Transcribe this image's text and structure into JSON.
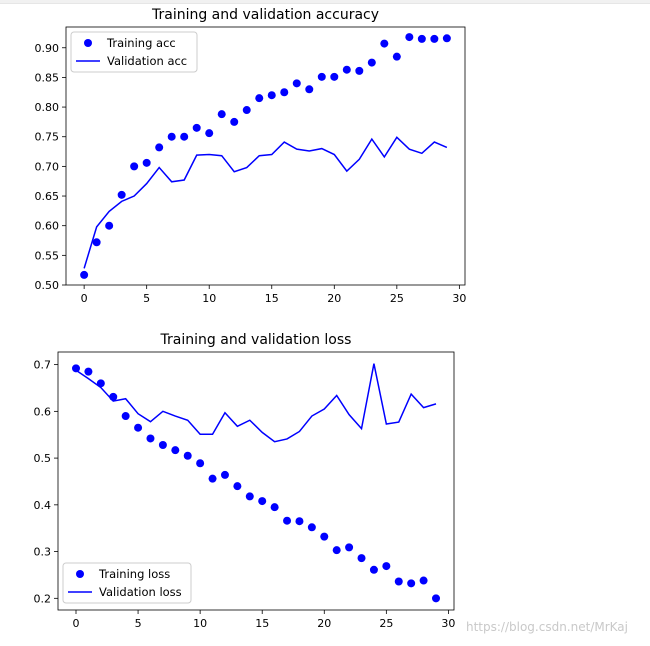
{
  "chart_data": [
    {
      "type": "line",
      "title": "Training and validation accuracy",
      "xlabel": "",
      "ylabel": "",
      "xlim": [
        -1.45,
        30.45
      ],
      "ylim": [
        0.5,
        0.935
      ],
      "xticks": [
        0,
        5,
        10,
        15,
        20,
        25,
        30
      ],
      "yticks": [
        0.5,
        0.55,
        0.6,
        0.65,
        0.7,
        0.75,
        0.8,
        0.85,
        0.9
      ],
      "ytick_labels": [
        "0.50",
        "0.55",
        "0.60",
        "0.65",
        "0.70",
        "0.75",
        "0.80",
        "0.85",
        "0.90"
      ],
      "grid": false,
      "legend": "top-left",
      "x": [
        0,
        1,
        2,
        3,
        4,
        5,
        6,
        7,
        8,
        9,
        10,
        11,
        12,
        13,
        14,
        15,
        16,
        17,
        18,
        19,
        20,
        21,
        22,
        23,
        24,
        25,
        26,
        27,
        28,
        29
      ],
      "series": [
        {
          "name": "Training acc",
          "style": "points",
          "color": "#0000ff",
          "values": [
            0.517,
            0.572,
            0.6,
            0.652,
            0.7,
            0.706,
            0.732,
            0.75,
            0.75,
            0.765,
            0.756,
            0.788,
            0.775,
            0.795,
            0.815,
            0.82,
            0.825,
            0.84,
            0.83,
            0.851,
            0.851,
            0.863,
            0.861,
            0.875,
            0.907,
            0.885,
            0.918,
            0.915,
            0.915,
            0.916
          ]
        },
        {
          "name": "Validation acc",
          "style": "line",
          "color": "#0000ff",
          "values": [
            0.528,
            0.598,
            0.624,
            0.641,
            0.65,
            0.671,
            0.698,
            0.674,
            0.677,
            0.719,
            0.72,
            0.718,
            0.691,
            0.698,
            0.718,
            0.72,
            0.741,
            0.729,
            0.726,
            0.73,
            0.72,
            0.692,
            0.712,
            0.746,
            0.716,
            0.749,
            0.729,
            0.722,
            0.741,
            0.732
          ]
        }
      ]
    },
    {
      "type": "line",
      "title": "Training and validation loss",
      "xlabel": "",
      "ylabel": "",
      "xlim": [
        -1.45,
        30.45
      ],
      "ylim": [
        0.175,
        0.727
      ],
      "xticks": [
        0,
        5,
        10,
        15,
        20,
        25,
        30
      ],
      "yticks": [
        0.2,
        0.3,
        0.4,
        0.5,
        0.6,
        0.7
      ],
      "ytick_labels": [
        "0.2",
        "0.3",
        "0.4",
        "0.5",
        "0.6",
        "0.7"
      ],
      "grid": false,
      "legend": "bottom-left",
      "x": [
        0,
        1,
        2,
        3,
        4,
        5,
        6,
        7,
        8,
        9,
        10,
        11,
        12,
        13,
        14,
        15,
        16,
        17,
        18,
        19,
        20,
        21,
        22,
        23,
        24,
        25,
        26,
        27,
        28,
        29
      ],
      "series": [
        {
          "name": "Training loss",
          "style": "points",
          "color": "#0000ff",
          "values": [
            0.692,
            0.685,
            0.66,
            0.631,
            0.59,
            0.565,
            0.542,
            0.528,
            0.517,
            0.505,
            0.489,
            0.456,
            0.464,
            0.44,
            0.418,
            0.408,
            0.395,
            0.366,
            0.365,
            0.352,
            0.332,
            0.303,
            0.309,
            0.286,
            0.261,
            0.269,
            0.236,
            0.232,
            0.238,
            0.2
          ]
        },
        {
          "name": "Validation loss",
          "style": "line",
          "color": "#0000ff",
          "values": [
            0.688,
            0.67,
            0.651,
            0.622,
            0.627,
            0.595,
            0.578,
            0.6,
            0.59,
            0.581,
            0.551,
            0.551,
            0.597,
            0.568,
            0.581,
            0.555,
            0.535,
            0.541,
            0.557,
            0.59,
            0.605,
            0.634,
            0.593,
            0.563,
            0.702,
            0.573,
            0.577,
            0.637,
            0.608,
            0.616
          ]
        }
      ]
    }
  ],
  "watermark": "https://blog.csdn.net/MrKaj"
}
